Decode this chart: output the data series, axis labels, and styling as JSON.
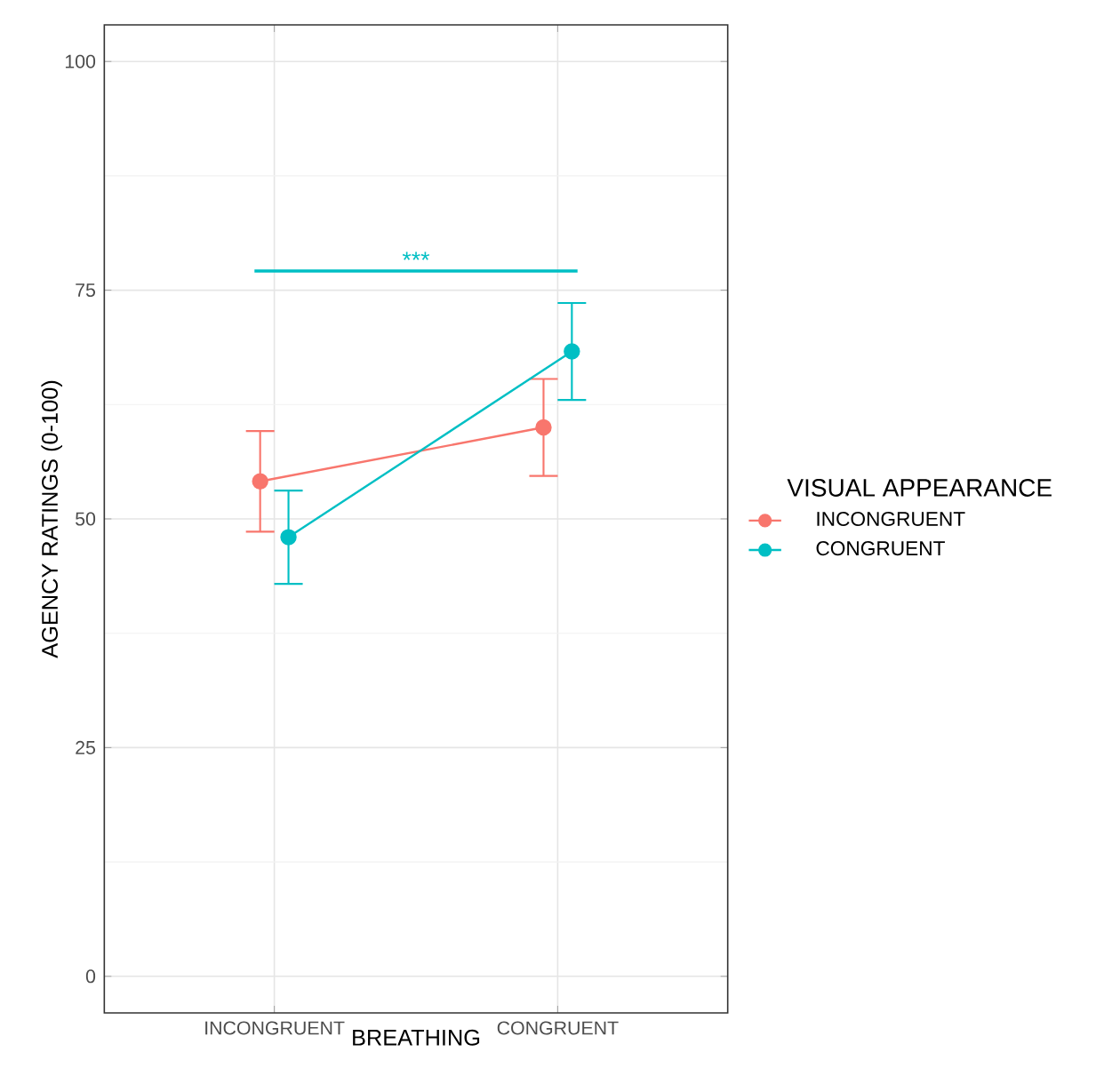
{
  "chart_data": {
    "type": "line",
    "xlabel": "BREATHING",
    "ylabel": "AGENCY RATINGS (0-100)",
    "legend_title": "VISUAL APPEARANCE",
    "categories": [
      "INCONGRUENT",
      "CONGRUENT"
    ],
    "series": [
      {
        "name": "INCONGRUENT",
        "color": "#f8766d",
        "values": [
          54.1,
          60.0
        ],
        "errors": [
          5.5,
          5.3
        ]
      },
      {
        "name": "CONGRUENT",
        "color": "#00bfc4",
        "values": [
          48.0,
          68.3
        ],
        "errors": [
          5.1,
          5.3
        ]
      }
    ],
    "ylim": [
      -4,
      104
    ],
    "yticks": [
      0,
      25,
      50,
      75,
      100
    ],
    "grid": true,
    "legend": "right",
    "marker": "circle",
    "line_style": "solid",
    "annotations": [
      "***"
    ]
  }
}
